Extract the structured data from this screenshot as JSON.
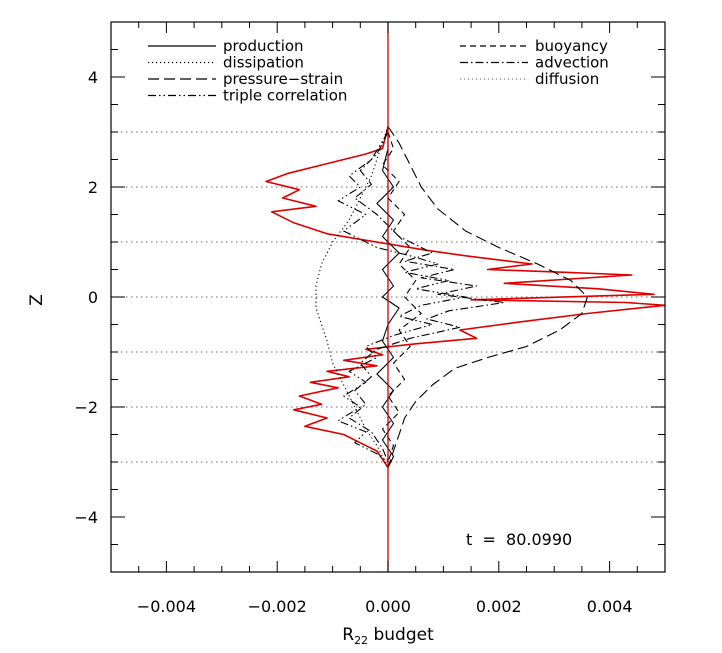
{
  "chart_data": {
    "type": "line",
    "orientation": "vertical-profile",
    "xlabel": "R22 budget",
    "xlabel_main": "R",
    "xlabel_sub": "22",
    "xlabel_rest": " budget",
    "ylabel": "Z",
    "xlim": [
      -0.005,
      0.005
    ],
    "ylim": [
      -5,
      5
    ],
    "x_ticks": [
      -0.004,
      -0.002,
      0.0,
      0.002,
      0.004
    ],
    "x_tick_labels": [
      "−0.004",
      "−0.002",
      "0.000",
      "0.002",
      "0.004"
    ],
    "y_ticks": [
      -4,
      -2,
      0,
      2,
      4
    ],
    "y_tick_labels": [
      "−4",
      "−2",
      "0",
      "2",
      "4"
    ],
    "horizontal_reference_lines": [
      -3,
      -2,
      -1,
      0,
      1,
      2,
      3
    ],
    "vertical_reference_line": {
      "x": 0.0,
      "color": "#cc0000"
    },
    "annotation": "t  =  80.0990",
    "legend_left": [
      {
        "name": "production",
        "style": "solid"
      },
      {
        "name": "dissipation",
        "style": "dotted"
      },
      {
        "name": "pressure−strain",
        "style": "long-dash"
      },
      {
        "name": "triple correlation",
        "style": "dash-dot-dot"
      }
    ],
    "legend_right": [
      {
        "name": "buoyancy",
        "style": "dash"
      },
      {
        "name": "advection",
        "style": "dash-dot"
      },
      {
        "name": "diffusion",
        "style": "dotted-gray"
      }
    ],
    "series": [
      {
        "key": "total",
        "color": "#dd0000",
        "style": "solid",
        "x": [
          0.0,
          -0.0001,
          -0.0004,
          -0.0008,
          -0.0012,
          -0.0018,
          -0.0022,
          -0.0016,
          -0.0019,
          -0.0013,
          -0.0021,
          -0.0017,
          -0.0011,
          0.0001,
          0.0007,
          0.0014,
          0.0026,
          0.0018,
          0.0032,
          0.0044,
          0.0021,
          0.0038,
          0.0048,
          0.0015,
          0.0043,
          0.005,
          0.0036,
          0.0024,
          0.0013,
          0.0016,
          0.0005,
          -0.0004,
          -0.0001,
          -0.0008,
          -0.0002,
          -0.0011,
          -0.0007,
          -0.0014,
          -0.0009,
          -0.0016,
          -0.0012,
          -0.0017,
          -0.0011,
          -0.0015,
          -0.0008,
          -0.0005,
          -0.0002,
          0.0
        ],
        "y": [
          3.1,
          2.7,
          2.6,
          2.5,
          2.4,
          2.25,
          2.1,
          1.95,
          1.8,
          1.65,
          1.55,
          1.35,
          1.15,
          0.95,
          0.85,
          0.75,
          0.6,
          0.5,
          0.45,
          0.4,
          0.25,
          0.15,
          0.05,
          -0.05,
          -0.1,
          -0.15,
          -0.3,
          -0.45,
          -0.6,
          -0.75,
          -0.85,
          -0.95,
          -1.05,
          -1.15,
          -1.25,
          -1.35,
          -1.45,
          -1.55,
          -1.65,
          -1.8,
          -1.95,
          -2.05,
          -2.2,
          -2.35,
          -2.5,
          -2.65,
          -2.8,
          -3.1
        ]
      },
      {
        "key": "production",
        "color": "#000000",
        "style": "solid",
        "x": [
          0.0,
          0.0,
          -0.0001,
          0.0001,
          -0.0002,
          0.0001,
          -0.0001,
          0.0002,
          -0.0001,
          0.0001,
          -0.0001,
          0.0002,
          0.0,
          -0.0001,
          0.0001,
          -0.0002,
          0.0001,
          -0.0001,
          0.0001,
          -0.0001,
          0.0001,
          0.0
        ],
        "y": [
          3.1,
          2.7,
          2.3,
          2.0,
          1.7,
          1.4,
          1.1,
          0.8,
          0.5,
          0.2,
          0.0,
          -0.2,
          -0.5,
          -0.8,
          -1.1,
          -1.4,
          -1.7,
          -2.0,
          -2.3,
          -2.6,
          -2.9,
          -3.1
        ]
      },
      {
        "key": "dissipation",
        "color": "#000000",
        "style": "dotted",
        "x": [
          0.0,
          -0.0001,
          -0.0002,
          -0.0003,
          -0.0005,
          -0.0007,
          -0.001,
          -0.0012,
          -0.0013,
          -0.0013,
          -0.0013,
          -0.0012,
          -0.0011,
          -0.001,
          -0.0008,
          -0.0006,
          -0.0004,
          -0.0002,
          -0.0001,
          0.0
        ],
        "y": [
          3.1,
          2.8,
          2.5,
          2.2,
          1.8,
          1.4,
          1.0,
          0.6,
          0.2,
          0.0,
          -0.2,
          -0.5,
          -0.8,
          -1.2,
          -1.6,
          -2.0,
          -2.4,
          -2.7,
          -2.9,
          -3.1
        ]
      },
      {
        "key": "pressure-strain",
        "color": "#000000",
        "style": "long-dash",
        "x": [
          0.0,
          0.0002,
          0.0004,
          0.0006,
          0.0009,
          0.0014,
          0.002,
          0.0027,
          0.0033,
          0.0036,
          0.0035,
          0.0031,
          0.0025,
          0.0018,
          0.0012,
          0.0008,
          0.0005,
          0.0003,
          0.0002,
          0.0001,
          0.0
        ],
        "y": [
          3.1,
          2.8,
          2.4,
          2.0,
          1.6,
          1.2,
          0.9,
          0.6,
          0.3,
          0.0,
          -0.3,
          -0.6,
          -0.9,
          -1.1,
          -1.3,
          -1.6,
          -1.9,
          -2.2,
          -2.5,
          -2.8,
          -3.1
        ]
      },
      {
        "key": "triple-correlation",
        "color": "#000000",
        "style": "dash-dot-dot",
        "x": [
          0.0,
          -0.0003,
          -0.0007,
          -0.0005,
          -0.0009,
          -0.0004,
          -0.0008,
          -0.0002,
          0.0004,
          0.0009,
          0.0003,
          0.0011,
          0.0005,
          0.0014,
          0.0006,
          0.0002,
          0.0008,
          0.0001,
          -0.0004,
          -0.0002,
          -0.0007,
          -0.0004,
          -0.0008,
          -0.0005,
          -0.0009,
          -0.0004,
          -0.0006,
          -0.0002,
          0.0
        ],
        "y": [
          3.0,
          2.5,
          2.2,
          2.0,
          1.75,
          1.5,
          1.2,
          0.9,
          0.75,
          0.6,
          0.45,
          0.3,
          0.15,
          0.0,
          -0.15,
          -0.35,
          -0.5,
          -0.7,
          -0.9,
          -1.1,
          -1.35,
          -1.55,
          -1.8,
          -2.0,
          -2.25,
          -2.45,
          -2.65,
          -2.85,
          -3.0
        ]
      },
      {
        "key": "buoyancy",
        "color": "#000000",
        "style": "dash",
        "x": [
          0.0,
          0.0001,
          -0.0001,
          0.0002,
          0.0,
          0.0003,
          0.0001,
          0.0004,
          0.0002,
          0.0005,
          0.0003,
          0.0006,
          0.0002,
          0.0004,
          0.0001,
          0.0003,
          0.0,
          0.0002,
          -0.0001,
          0.0001,
          0.0
        ],
        "y": [
          3.0,
          2.7,
          2.4,
          2.1,
          1.8,
          1.5,
          1.2,
          0.9,
          0.6,
          0.3,
          0.0,
          -0.3,
          -0.6,
          -0.9,
          -1.2,
          -1.5,
          -1.8,
          -2.1,
          -2.4,
          -2.7,
          -3.0
        ]
      },
      {
        "key": "advection",
        "color": "#000000",
        "style": "dash-dot",
        "x": [
          0.0,
          -0.0002,
          -0.0005,
          -0.0003,
          -0.0006,
          -0.0002,
          0.0002,
          0.0008,
          0.0003,
          0.0012,
          0.0006,
          0.0016,
          0.0009,
          0.0021,
          0.0011,
          0.0007,
          0.0013,
          0.0004,
          -0.0002,
          -0.0005,
          -0.0003,
          -0.0006,
          -0.0004,
          -0.0007,
          -0.0003,
          -0.0001,
          0.0
        ],
        "y": [
          3.0,
          2.6,
          2.3,
          2.05,
          1.8,
          1.5,
          1.1,
          0.8,
          0.65,
          0.5,
          0.35,
          0.2,
          0.05,
          -0.1,
          -0.25,
          -0.4,
          -0.55,
          -0.75,
          -0.95,
          -1.2,
          -1.45,
          -1.7,
          -1.95,
          -2.2,
          -2.45,
          -2.75,
          -3.0
        ]
      }
    ]
  }
}
